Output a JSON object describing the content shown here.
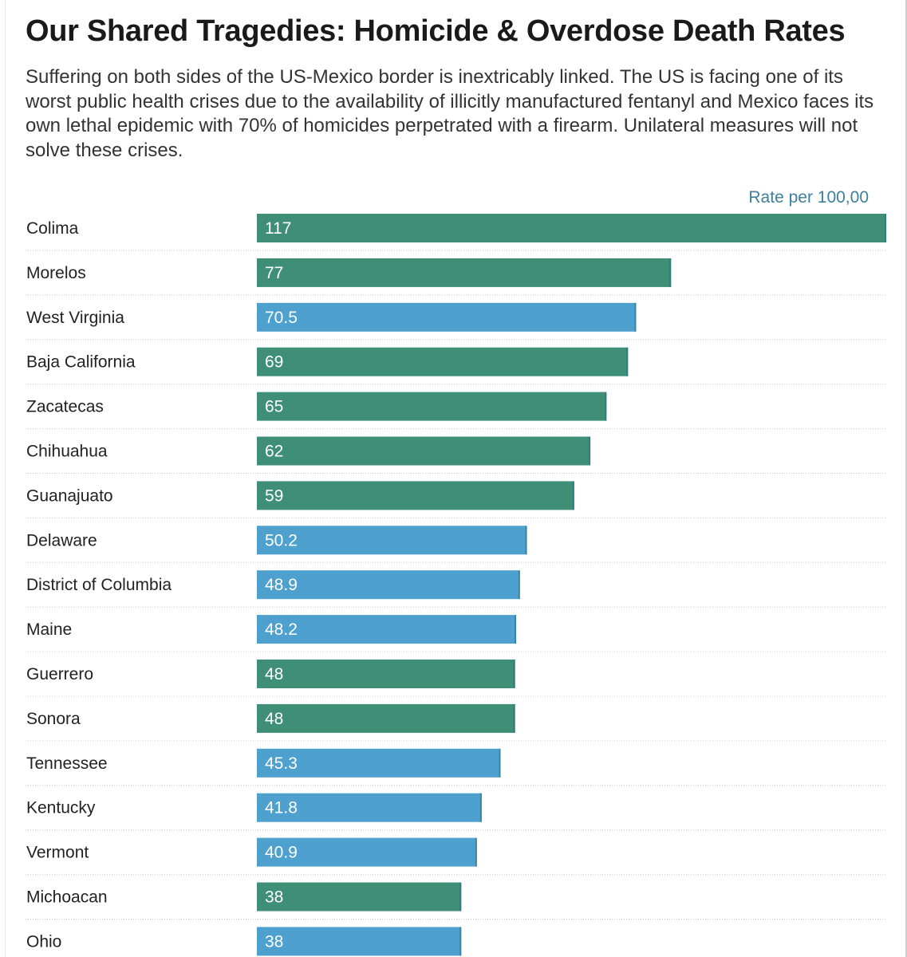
{
  "title": "Our Shared Tragedies: Homicide & Overdose Death Rates",
  "subtitle": "Suffering on both sides of the US-Mexico border is inextricably linked. The US is facing one of its worst public health crises due to the availability of illicitly manufactured fentanyl and Mexico faces its own lethal epidemic with 70% of homicides perpetrated with a firearm. Unilateral measures will not solve these crises.",
  "colors": {
    "green": "#3e8f76",
    "blue": "#4ea1cf",
    "separator": "#cccccc",
    "unit_label": "#3d7f9c"
  },
  "chart_data": {
    "type": "bar",
    "orientation": "horizontal",
    "value_label": "Rate per 100,00",
    "xlim": [
      0,
      117
    ],
    "grid": false,
    "categories": [
      "Colima",
      "Morelos",
      "West Virginia",
      "Baja California",
      "Zacatecas",
      "Chihuahua",
      "Guanajuato",
      "Delaware",
      "District of Columbia",
      "Maine",
      "Guerrero",
      "Sonora",
      "Tennessee",
      "Kentucky",
      "Vermont",
      "Michoacan",
      "Ohio"
    ],
    "values": [
      117,
      77,
      70.5,
      69,
      65,
      62,
      59,
      50.2,
      48.9,
      48.2,
      48,
      48,
      45.3,
      41.8,
      40.9,
      38,
      38
    ],
    "value_labels": [
      "117",
      "77",
      "70.5",
      "69",
      "65",
      "62",
      "59",
      "50.2",
      "48.9",
      "48.2",
      "48",
      "48",
      "45.3",
      "41.8",
      "40.9",
      "38",
      "38"
    ],
    "bar_colors": [
      "green",
      "green",
      "blue",
      "green",
      "green",
      "green",
      "green",
      "blue",
      "blue",
      "blue",
      "green",
      "green",
      "blue",
      "blue",
      "blue",
      "green",
      "blue"
    ]
  }
}
